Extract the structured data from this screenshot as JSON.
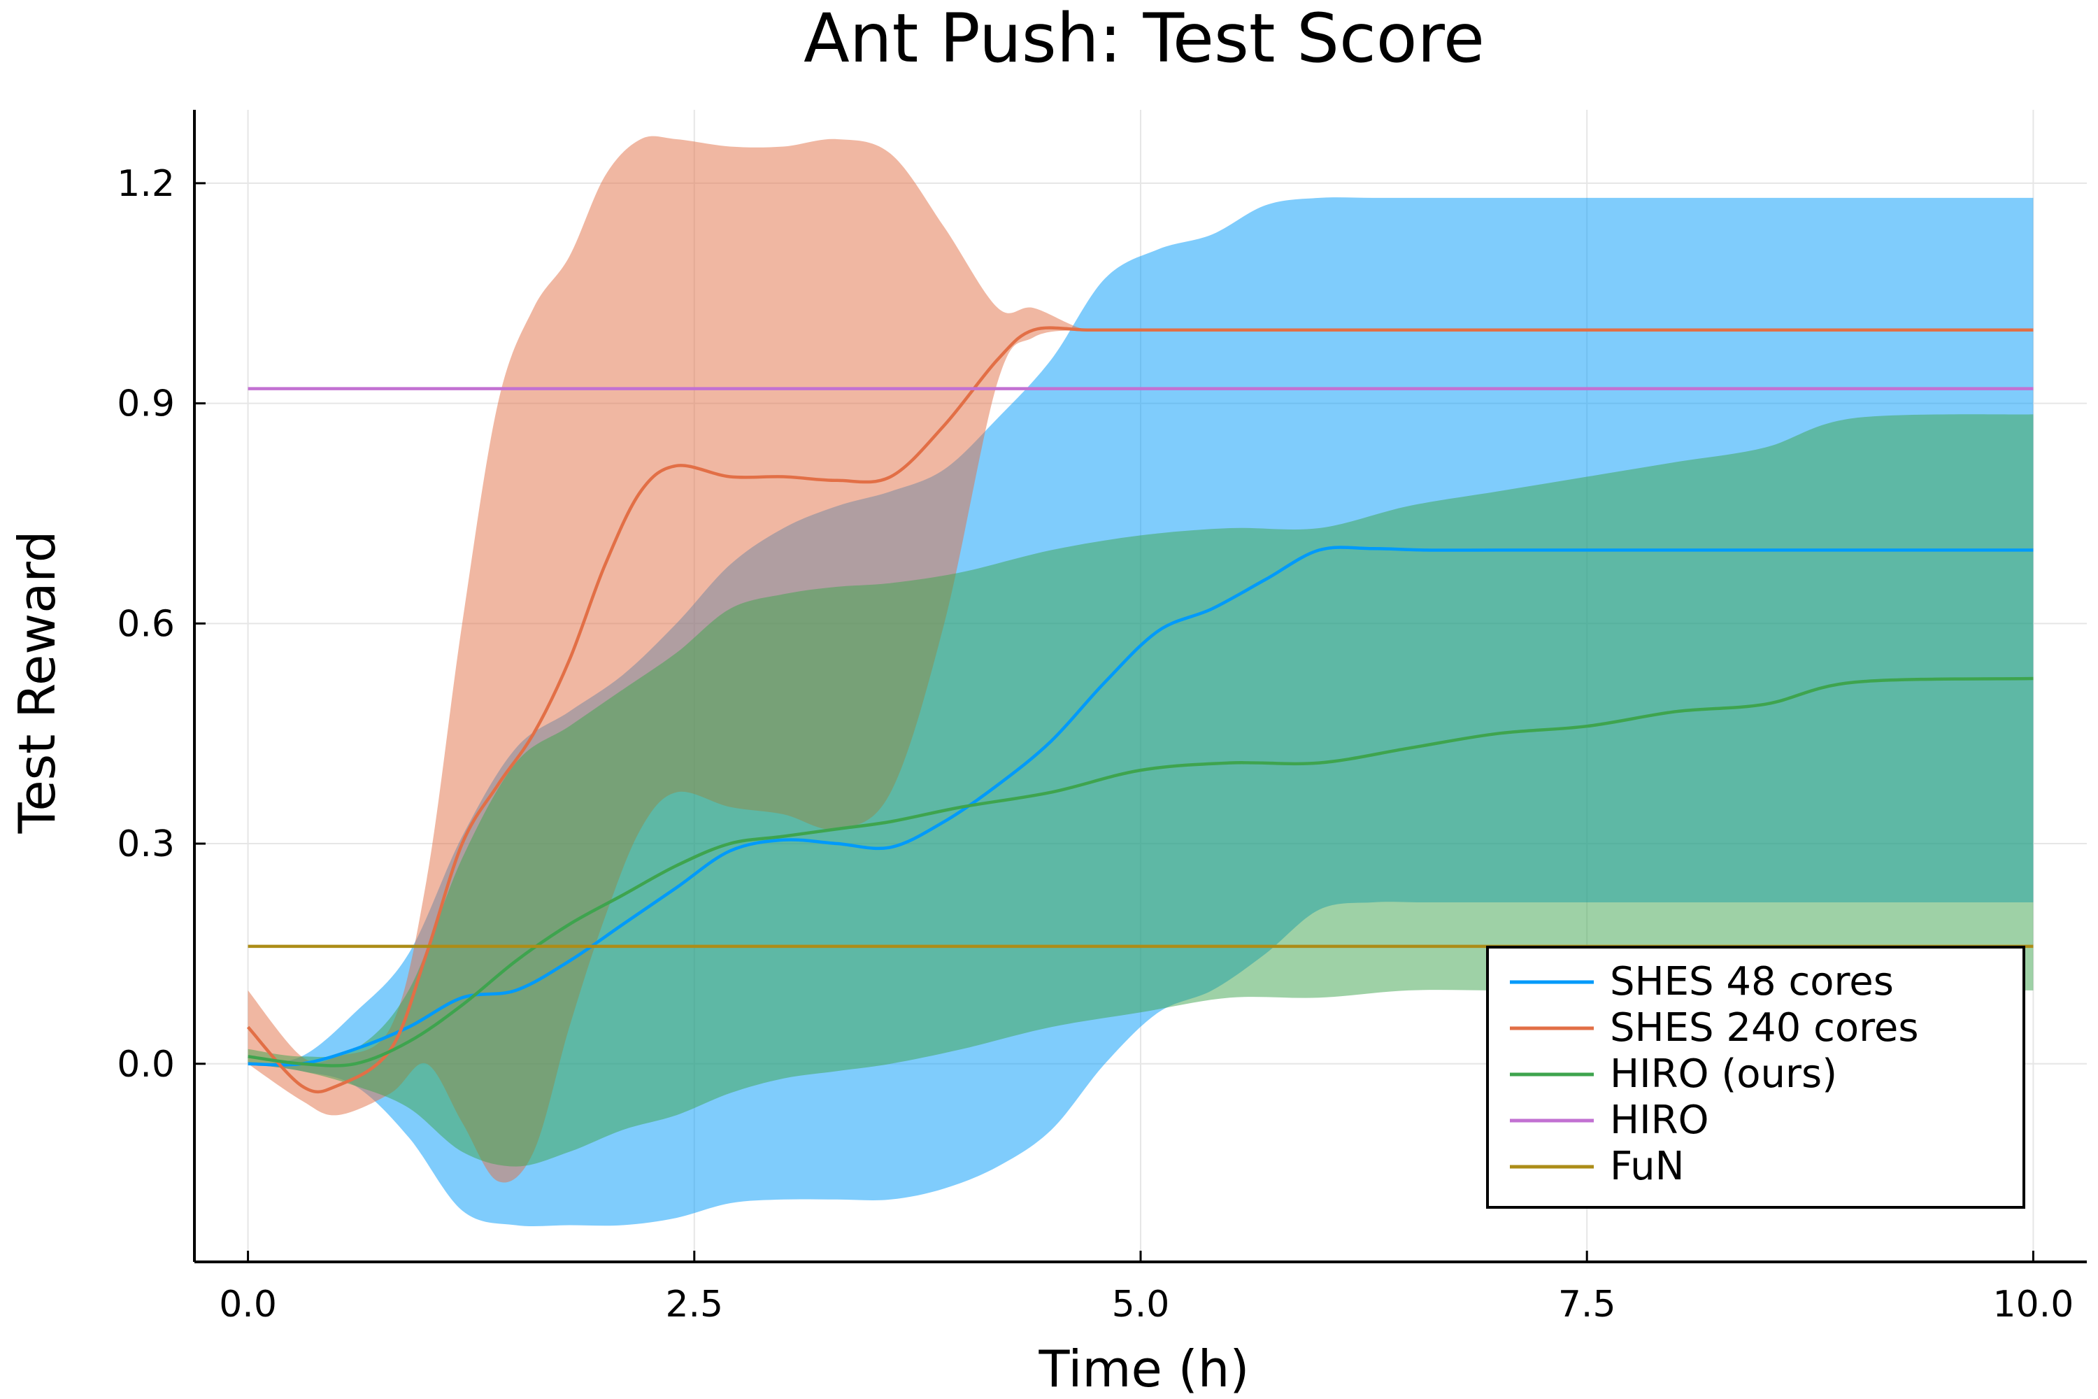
{
  "chart_data": {
    "type": "line",
    "title": "Ant Push: Test Score",
    "xlabel": "Time (h)",
    "ylabel": "Test Reward",
    "xlim": [
      -0.3,
      10.3
    ],
    "ylim": [
      -0.27,
      1.3
    ],
    "xticks": [
      0,
      2.5,
      5,
      7.5,
      10
    ],
    "xtick_labels": [
      "0.0",
      "2.5",
      "5.0",
      "7.5",
      "10.0"
    ],
    "yticks": [
      0,
      0.3,
      0.6,
      0.9,
      1.2
    ],
    "ytick_labels": [
      "0.0",
      "0.3",
      "0.6",
      "0.9",
      "1.2"
    ],
    "grid": true,
    "legend_position": "bottom-right",
    "series": [
      {
        "name": "SHES 48 cores",
        "color": "#009AFA",
        "x": [
          0,
          0.3,
          0.6,
          0.9,
          1.2,
          1.5,
          1.8,
          2.1,
          2.4,
          2.7,
          3.0,
          3.3,
          3.6,
          3.9,
          4.2,
          4.5,
          4.8,
          5.1,
          5.4,
          5.7,
          6.0,
          6.3,
          6.6,
          7.0,
          8.0,
          9.0,
          10.0
        ],
        "y": [
          0.0,
          0.0,
          0.02,
          0.05,
          0.09,
          0.1,
          0.14,
          0.19,
          0.24,
          0.29,
          0.305,
          0.3,
          0.295,
          0.33,
          0.38,
          0.44,
          0.52,
          0.59,
          0.62,
          0.66,
          0.7,
          0.702,
          0.7,
          0.7,
          0.7,
          0.7,
          0.7
        ],
        "lower": [
          0.0,
          -0.01,
          -0.03,
          -0.1,
          -0.2,
          -0.22,
          -0.22,
          -0.22,
          -0.21,
          -0.19,
          -0.185,
          -0.185,
          -0.185,
          -0.17,
          -0.14,
          -0.09,
          0.0,
          0.07,
          0.1,
          0.15,
          0.21,
          0.22,
          0.22,
          0.22,
          0.22,
          0.22,
          0.22
        ],
        "upper": [
          0.0,
          0.01,
          0.07,
          0.15,
          0.31,
          0.43,
          0.48,
          0.53,
          0.6,
          0.68,
          0.73,
          0.76,
          0.78,
          0.81,
          0.88,
          0.96,
          1.07,
          1.11,
          1.13,
          1.17,
          1.18,
          1.18,
          1.18,
          1.18,
          1.18,
          1.18,
          1.18
        ]
      },
      {
        "name": "SHES 240 cores",
        "color": "#E26F46",
        "x": [
          0,
          0.3,
          0.5,
          0.8,
          1.0,
          1.2,
          1.4,
          1.6,
          1.8,
          2.0,
          2.2,
          2.4,
          2.7,
          3.0,
          3.3,
          3.6,
          3.9,
          4.2,
          4.4,
          4.7,
          5.0,
          6.0,
          7.0,
          8.0,
          9.0,
          10.0
        ],
        "y": [
          0.05,
          -0.03,
          -0.03,
          0.02,
          0.15,
          0.3,
          0.38,
          0.45,
          0.55,
          0.68,
          0.78,
          0.815,
          0.8,
          0.8,
          0.795,
          0.8,
          0.87,
          0.96,
          1.0,
          1.0,
          1.0,
          1.0,
          1.0,
          1.0,
          1.0,
          1.0
        ],
        "lower": [
          0.0,
          -0.05,
          -0.07,
          -0.04,
          0.0,
          -0.08,
          -0.16,
          -0.12,
          0.05,
          0.2,
          0.32,
          0.37,
          0.35,
          0.34,
          0.32,
          0.37,
          0.6,
          0.93,
          0.99,
          1.0,
          1.0,
          1.0,
          1.0,
          1.0,
          1.0,
          1.0
        ],
        "upper": [
          0.1,
          0.01,
          0.01,
          0.05,
          0.25,
          0.6,
          0.9,
          1.03,
          1.1,
          1.21,
          1.26,
          1.26,
          1.25,
          1.25,
          1.26,
          1.24,
          1.14,
          1.03,
          1.03,
          1.0,
          1.0,
          1.0,
          1.0,
          1.0,
          1.0,
          1.0
        ]
      },
      {
        "name": "HIRO (ours)",
        "color": "#3EA44E",
        "x": [
          0,
          0.3,
          0.6,
          0.9,
          1.2,
          1.5,
          1.8,
          2.1,
          2.4,
          2.7,
          3.0,
          3.3,
          3.6,
          4.0,
          4.5,
          5.0,
          5.5,
          6.0,
          6.5,
          7.0,
          7.5,
          8.0,
          8.5,
          9.0,
          10.0
        ],
        "y": [
          0.01,
          0.0,
          0.0,
          0.03,
          0.08,
          0.14,
          0.19,
          0.23,
          0.27,
          0.3,
          0.31,
          0.32,
          0.33,
          0.35,
          0.37,
          0.4,
          0.41,
          0.41,
          0.43,
          0.45,
          0.46,
          0.48,
          0.49,
          0.52,
          0.525
        ],
        "lower": [
          0.0,
          -0.01,
          -0.03,
          -0.06,
          -0.12,
          -0.14,
          -0.12,
          -0.09,
          -0.07,
          -0.04,
          -0.02,
          -0.01,
          0.0,
          0.02,
          0.05,
          0.07,
          0.09,
          0.09,
          0.1,
          0.1,
          0.1,
          0.1,
          0.1,
          0.1,
          0.1
        ],
        "upper": [
          0.02,
          0.01,
          0.02,
          0.1,
          0.28,
          0.41,
          0.46,
          0.51,
          0.56,
          0.62,
          0.64,
          0.65,
          0.655,
          0.67,
          0.7,
          0.72,
          0.73,
          0.73,
          0.76,
          0.78,
          0.8,
          0.82,
          0.84,
          0.88,
          0.885
        ]
      },
      {
        "name": "HIRO",
        "color": "#C271D2",
        "x": [
          0,
          10
        ],
        "y": [
          0.92,
          0.92
        ]
      },
      {
        "name": "FuN",
        "color": "#AC8D18",
        "x": [
          0,
          10
        ],
        "y": [
          0.16,
          0.16
        ]
      }
    ]
  }
}
